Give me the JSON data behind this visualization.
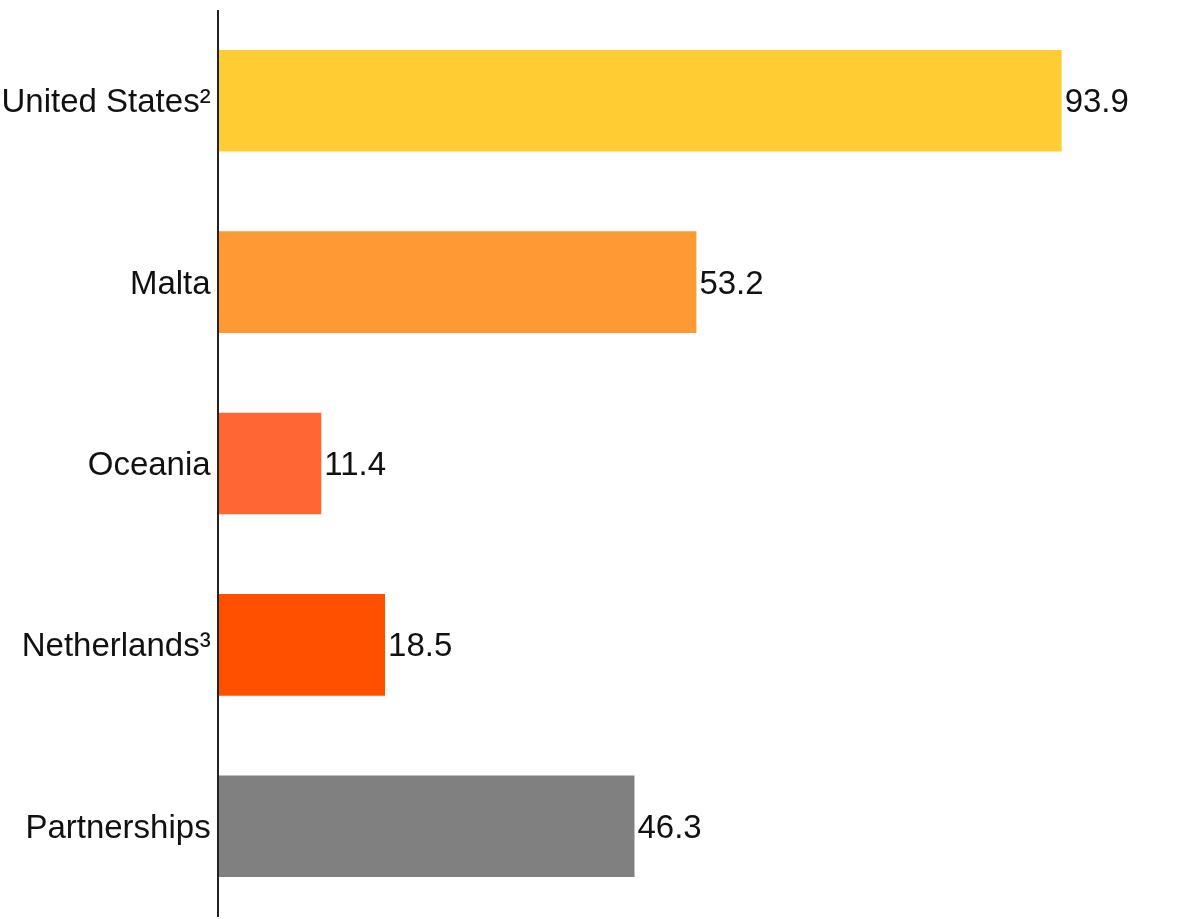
{
  "chart_data": {
    "type": "bar",
    "orientation": "horizontal",
    "categories": [
      "United States²",
      "Malta",
      "Oceania",
      "Netherlands³",
      "Partnerships"
    ],
    "values": [
      93.9,
      53.2,
      11.4,
      18.5,
      46.3
    ],
    "colors": [
      "#ffcc33",
      "#ff9933",
      "#ff6633",
      "#ff5000",
      "#808080"
    ],
    "data_labels": true,
    "tick_labels": "y"
  }
}
